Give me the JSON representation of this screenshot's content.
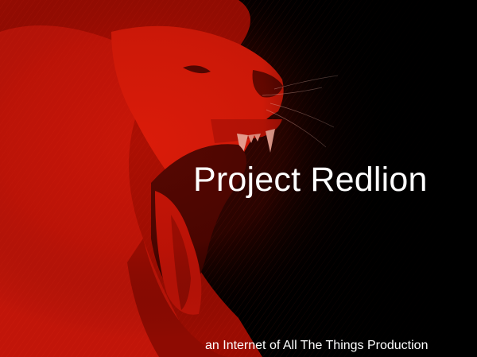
{
  "slide": {
    "title": "Project Redlion",
    "subtitle": "an Internet of All The Things Production"
  },
  "image": {
    "subject": "roaring-lion-photo",
    "tint_color": "#cc1100",
    "background_color": "#000000"
  }
}
